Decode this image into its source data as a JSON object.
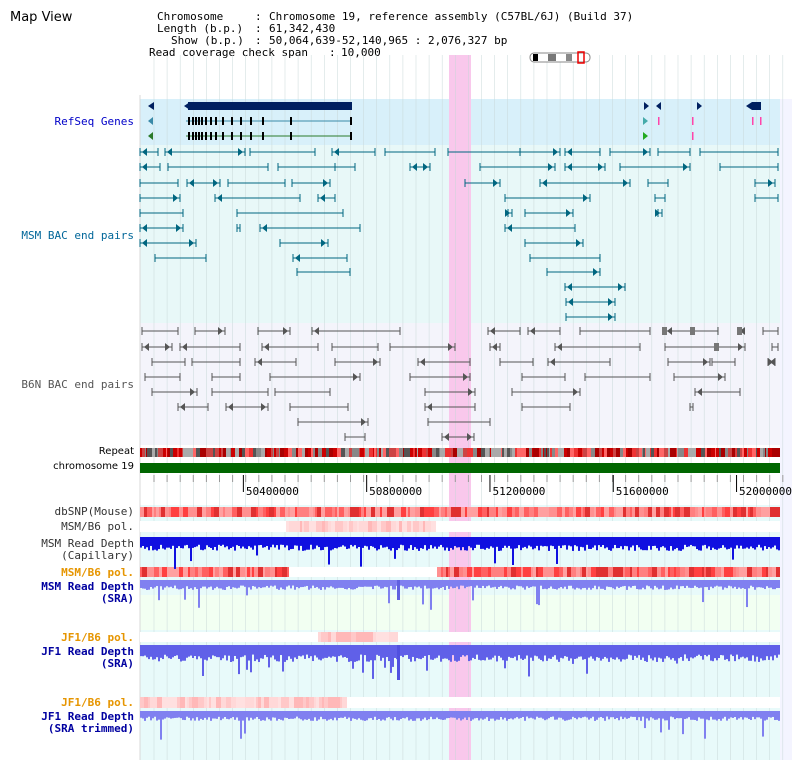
{
  "page": {
    "title": "Map View"
  },
  "info": {
    "chromosome_label": "Chromosome",
    "chromosome_value": "Chromosome 19, reference assembly (C57BL/6J) (Build 37)",
    "length_label": "Length (b.p.)",
    "length_value": "61,342,430",
    "show_label": "Show (b.p.)",
    "show_value": "50,064,639-52,140,965 : 2,076,327 bp",
    "span_label": "Read coverage check span",
    "span_value": "10,000"
  },
  "tracks": {
    "refseq": "RefSeq Genes",
    "msm_bac": "MSM BAC end pairs",
    "b6n_bac": "B6N BAC end pairs",
    "repeat": "Repeat",
    "chromosome": "chromosome 19",
    "dbsnp": "dbSNP(Mouse)",
    "msm_b6_pol_1": "MSM/B6 pol.",
    "msm_depth_cap_1": "MSM Read Depth",
    "msm_depth_cap_2": "(Capillary)",
    "msm_b6_pol_2": "MSM/B6 pol.",
    "msm_depth_sra_1": "MSM Read Depth",
    "msm_depth_sra_2": "(SRA)",
    "jf1_b6_pol_1": "JF1/B6 pol.",
    "jf1_depth_sra_1": "JF1 Read Depth",
    "jf1_depth_sra_2": "(SRA)",
    "jf1_b6_pol_2": "JF1/B6 pol.",
    "jf1_depth_trim_1": "JF1 Read Depth",
    "jf1_depth_trim_2": "(SRA trimmed)"
  },
  "axis": {
    "ticks": [
      {
        "pos": 50400000,
        "label": "50400000"
      },
      {
        "pos": 50800000,
        "label": "50800000"
      },
      {
        "pos": 51200000,
        "label": "51200000"
      },
      {
        "pos": 51600000,
        "label": "51600000"
      },
      {
        "pos": 52000000,
        "label": "52000000"
      }
    ],
    "start": 50064639,
    "end": 52140965
  },
  "colors": {
    "refseq_bg": "#d8f0fa",
    "lane_bg": "#e8f8f8",
    "highlight": "#f9c8ec",
    "refseq_text": "#0000c8",
    "msm_text": "#006699",
    "b6n_text": "#555555",
    "pol_orange": "#e69500",
    "depth_blue": "#0000a0",
    "chromosome_green": "#006600",
    "gene_dark": "#002060",
    "msm_line": "#006680",
    "b6n_line": "#555555"
  }
}
